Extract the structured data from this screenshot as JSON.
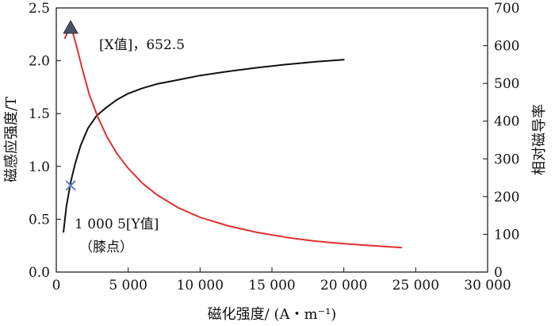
{
  "chart_data": {
    "type": "line",
    "xlabel": "磁化强度/ (A・m⁻¹)",
    "ylabel_left": "磁感应强度/T",
    "ylabel_right": "相对磁导率",
    "x_range": [
      0,
      30000
    ],
    "x_ticks": [
      "0",
      "5 000",
      "10 000",
      "15 000",
      "20 000",
      "25 000",
      "30 000"
    ],
    "y_left_range": [
      0,
      2.5
    ],
    "y_left_ticks": [
      "0.0",
      "0.5",
      "1.0",
      "1.5",
      "2.0",
      "2.5"
    ],
    "y_right_range": [
      0,
      700
    ],
    "y_right_ticks": [
      "0",
      "100",
      "200",
      "300",
      "400",
      "500",
      "600",
      "700"
    ],
    "grid": false,
    "colors": {
      "bh_curve": "#111111",
      "permeability_curve": "#e03030",
      "triangle_marker": "#4a5268",
      "cross_marker": "#5b7fc0"
    },
    "series": [
      {
        "key": "bh",
        "axis": "left",
        "color": "#111111",
        "x": [
          500,
          700,
          1000,
          1300,
          1700,
          2200,
          2800,
          3500,
          4200,
          5000,
          6000,
          7000,
          8500,
          10000,
          12000,
          14000,
          16000,
          18000,
          20000
        ],
        "y": [
          0.38,
          0.62,
          0.85,
          1.02,
          1.2,
          1.36,
          1.48,
          1.56,
          1.63,
          1.69,
          1.74,
          1.78,
          1.82,
          1.86,
          1.9,
          1.935,
          1.965,
          1.99,
          2.01
        ]
      },
      {
        "key": "permeability",
        "axis": "right",
        "color": "#e03030",
        "x": [
          600,
          1000,
          1400,
          1800,
          2300,
          2900,
          3500,
          4200,
          5000,
          6000,
          7000,
          8500,
          10000,
          12000,
          14000,
          16000,
          18000,
          20000,
          22000,
          24000
        ],
        "y": [
          620,
          655,
          600,
          540,
          470,
          410,
          360,
          315,
          275,
          235,
          205,
          170,
          145,
          122,
          105,
          92,
          82,
          75,
          70,
          65
        ]
      }
    ],
    "markers": [
      {
        "symbol": "triangle",
        "axis": "left",
        "x": 1000,
        "y": 2.31
      },
      {
        "symbol": "cross",
        "axis": "left",
        "x": 1000,
        "y": 0.82
      }
    ],
    "annotations": {
      "max_label": "[X值]，652.5",
      "knee_label_1": "1 000 5[Y值]",
      "knee_label_2": "（膝点）"
    }
  }
}
